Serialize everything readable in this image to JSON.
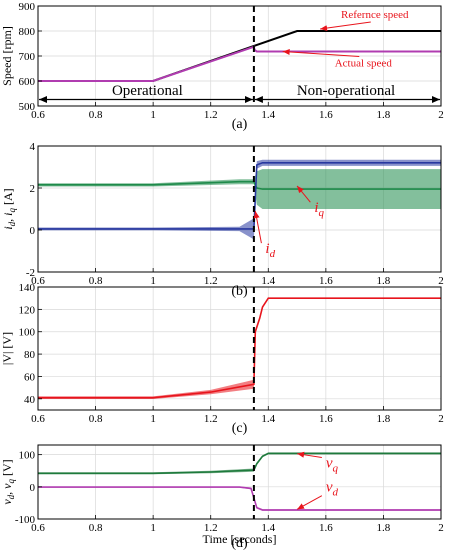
{
  "chart_data": [
    {
      "type": "line",
      "panel_label": "(a)",
      "xlim": [
        0.6,
        2
      ],
      "ylim": [
        500,
        900
      ],
      "x_ticks": [
        0.6,
        0.8,
        1,
        1.2,
        1.4,
        1.6,
        1.8,
        2
      ],
      "x_tick_labels": [
        "0.6",
        "0.8",
        "1",
        "1.2",
        "1.4",
        "1.6",
        "1.8",
        "2"
      ],
      "y_ticks": [
        500,
        600,
        700,
        800,
        900
      ],
      "y_tick_labels": [
        "500",
        "600",
        "700",
        "800",
        "900"
      ],
      "xlabel": "",
      "ylabel": "Speed [rpm]",
      "grid": true,
      "series": [
        {
          "name": "Refernce speed",
          "color": "#000000",
          "x": [
            0.6,
            1.0,
            1.5,
            2.0
          ],
          "y": [
            600,
            600,
            800,
            800
          ]
        },
        {
          "name": "Actual speed",
          "color": "#b03cb0",
          "x": [
            0.6,
            1.0,
            1.35,
            1.352,
            1.36,
            1.38,
            2.0
          ],
          "y": [
            600,
            600,
            737,
            725,
            718,
            718,
            718
          ]
        }
      ],
      "annotations": [
        {
          "text": "Refernce speed",
          "color": "#e8141c",
          "x": 1.77,
          "y": 852,
          "arrow_to": [
            1.58,
            808
          ]
        },
        {
          "text": "Actual speed",
          "color": "#e8141c",
          "x": 1.73,
          "y": 658,
          "arrow_to": [
            1.45,
            718
          ]
        },
        {
          "text": "Operational",
          "color": "#000000",
          "x": 0.98,
          "y": 545
        },
        {
          "text": "Non-operational",
          "color": "#000000",
          "x": 1.67,
          "y": 545
        }
      ],
      "interval_arrows": [
        {
          "from": 0.6,
          "to": 1.35,
          "y": 526
        },
        {
          "from": 1.35,
          "to": 2.0,
          "y": 526
        }
      ],
      "vline_x": 1.35
    },
    {
      "type": "line",
      "panel_label": "(b)",
      "xlim": [
        0.6,
        2
      ],
      "ylim": [
        -2,
        4
      ],
      "x_ticks": [
        0.6,
        0.8,
        1,
        1.2,
        1.4,
        1.6,
        1.8,
        2
      ],
      "x_tick_labels": [
        "0.6",
        "0.8",
        "1",
        "1.2",
        "1.4",
        "1.6",
        "1.8",
        "2"
      ],
      "y_ticks": [
        -2,
        0,
        2,
        4
      ],
      "y_tick_labels": [
        "-2",
        "0",
        "2",
        "4"
      ],
      "xlabel": "",
      "ylabel": "i_d, i_q [A]",
      "grid": true,
      "series": [
        {
          "name": "i_q",
          "color": "#1e8a4a",
          "x": [
            0.6,
            1.0,
            1.3,
            1.35,
            1.36,
            1.38,
            2.0
          ],
          "y": [
            2.15,
            2.15,
            2.3,
            2.3,
            2.0,
            1.95,
            1.95
          ],
          "band": [
            0.08,
            0.08,
            0.12,
            0.12,
            0.8,
            0.95,
            0.95
          ]
        },
        {
          "name": "i_d",
          "color": "#2838a0",
          "x": [
            0.6,
            1.0,
            1.3,
            1.35,
            1.36,
            1.38,
            2.0
          ],
          "y": [
            0.05,
            0.05,
            0.05,
            0.05,
            3.1,
            3.2,
            3.2
          ],
          "band": [
            0.07,
            0.07,
            0.1,
            0.5,
            0.18,
            0.15,
            0.15
          ]
        }
      ],
      "annotations": [
        {
          "text": "i",
          "sub": "d",
          "color": "#e8141c",
          "x": 1.39,
          "y": -1.1,
          "arrow_to": [
            1.355,
            0.9
          ]
        },
        {
          "text": "i",
          "sub": "q",
          "color": "#e8141c",
          "x": 1.56,
          "y": 0.85,
          "arrow_to": [
            1.5,
            2.1
          ]
        }
      ],
      "vline_x": 1.35
    },
    {
      "type": "line",
      "panel_label": "(c)",
      "xlim": [
        0.6,
        2
      ],
      "ylim": [
        30,
        140
      ],
      "x_ticks": [
        0.6,
        0.8,
        1,
        1.2,
        1.4,
        1.6,
        1.8,
        2
      ],
      "x_tick_labels": [
        "0.6",
        "0.8",
        "1",
        "1.2",
        "1.4",
        "1.6",
        "1.8",
        "2"
      ],
      "y_ticks": [
        40,
        60,
        80,
        100,
        120,
        140
      ],
      "y_tick_labels": [
        "40",
        "60",
        "80",
        "100",
        "120",
        "140"
      ],
      "xlabel": "",
      "ylabel": "|V| [V]",
      "grid": true,
      "series": [
        {
          "name": "|V|",
          "color": "#e8141c",
          "x": [
            0.6,
            1.0,
            1.2,
            1.35,
            1.355,
            1.37,
            1.38,
            1.4,
            2.0
          ],
          "y": [
            41,
            41,
            46,
            53,
            100,
            112,
            122,
            130,
            130
          ],
          "band": [
            1.2,
            1.2,
            2,
            4,
            2,
            1,
            1,
            0.6,
            0.6
          ]
        }
      ],
      "vline_x": 1.35
    },
    {
      "type": "line",
      "panel_label": "(d)",
      "xlim": [
        0.6,
        2
      ],
      "ylim": [
        -100,
        130
      ],
      "x_ticks": [
        0.6,
        0.8,
        1,
        1.2,
        1.4,
        1.6,
        1.8,
        2
      ],
      "x_tick_labels": [
        "0.6",
        "0.8",
        "1",
        "1.2",
        "1.4",
        "1.6",
        "1.8",
        "2"
      ],
      "y_ticks": [
        -100,
        0,
        100
      ],
      "y_tick_labels": [
        "-100",
        "0",
        "100"
      ],
      "xlabel": "Time [seconds]",
      "ylabel": "v_d, v_q [V]",
      "grid": true,
      "series": [
        {
          "name": "v_q",
          "color": "#1e7a3c",
          "x": [
            0.6,
            1.0,
            1.2,
            1.35,
            1.36,
            1.38,
            1.4,
            2.0
          ],
          "y": [
            42,
            42,
            46,
            52,
            72,
            95,
            104,
            104
          ],
          "band": [
            3,
            3,
            4,
            5,
            4,
            3,
            3,
            3
          ]
        },
        {
          "name": "v_d",
          "color": "#b03cb0",
          "x": [
            0.6,
            1.0,
            1.3,
            1.34,
            1.36,
            1.38,
            2.0
          ],
          "y": [
            -1,
            -1,
            -1,
            -5,
            -65,
            -72,
            -72
          ],
          "band": [
            2,
            2,
            2,
            3,
            3,
            3,
            3
          ]
        }
      ],
      "annotations": [
        {
          "text": "v",
          "sub": "q",
          "color": "#e8141c",
          "x": 1.6,
          "y": 60,
          "arrow_to": [
            1.5,
            103
          ]
        },
        {
          "text": "v",
          "sub": "d",
          "color": "#e8141c",
          "x": 1.6,
          "y": -15,
          "arrow_to": [
            1.5,
            -70
          ]
        }
      ],
      "vline_x": 1.35
    }
  ]
}
